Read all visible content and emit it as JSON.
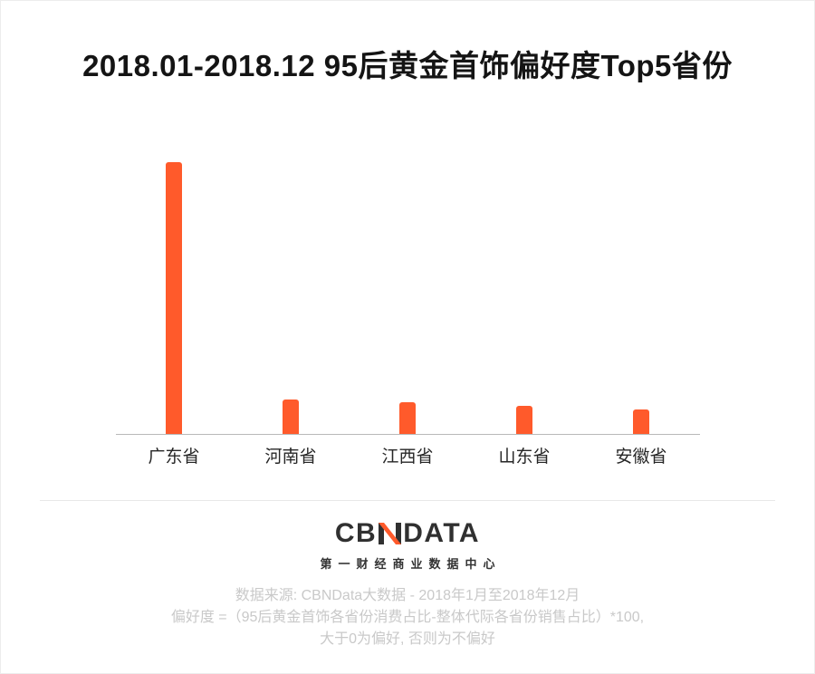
{
  "title": "2018.01-2018.12 95后黄金首饰偏好度Top5省份",
  "chart_data": {
    "type": "bar",
    "title": "2018.01-2018.12 95后黄金首饰偏好度Top5省份",
    "categories": [
      "广东省",
      "河南省",
      "江西省",
      "山东省",
      "安徽省"
    ],
    "values": [
      30,
      3.8,
      3.5,
      3.1,
      2.7
    ],
    "xlabel": "",
    "ylabel": "",
    "ylim": [
      0,
      32
    ],
    "gridlines": false,
    "legend": false,
    "bar_color": "#FF5A2B",
    "axis_line": true
  },
  "logo": {
    "full": "CBNDATA",
    "left": "CB",
    "right": "DATA",
    "subtitle": "第一财经商业数据中心"
  },
  "footer": {
    "line1": "数据来源: CBNData大数据 - 2018年1月至2018年12月",
    "line2": "偏好度 =（95后黄金首饰各省份消费占比-整体代际各省份销售占比）*100,",
    "line3": "大于0为偏好, 否则为不偏好"
  },
  "colors": {
    "bar": "#FF5A2B",
    "accent": "#FF5A2B",
    "logo_dark": "#303030",
    "title_text": "#141414",
    "axis_line": "#b9b9b9",
    "divider": "#e8e8e8",
    "footer_text": "#c9c9c9"
  }
}
